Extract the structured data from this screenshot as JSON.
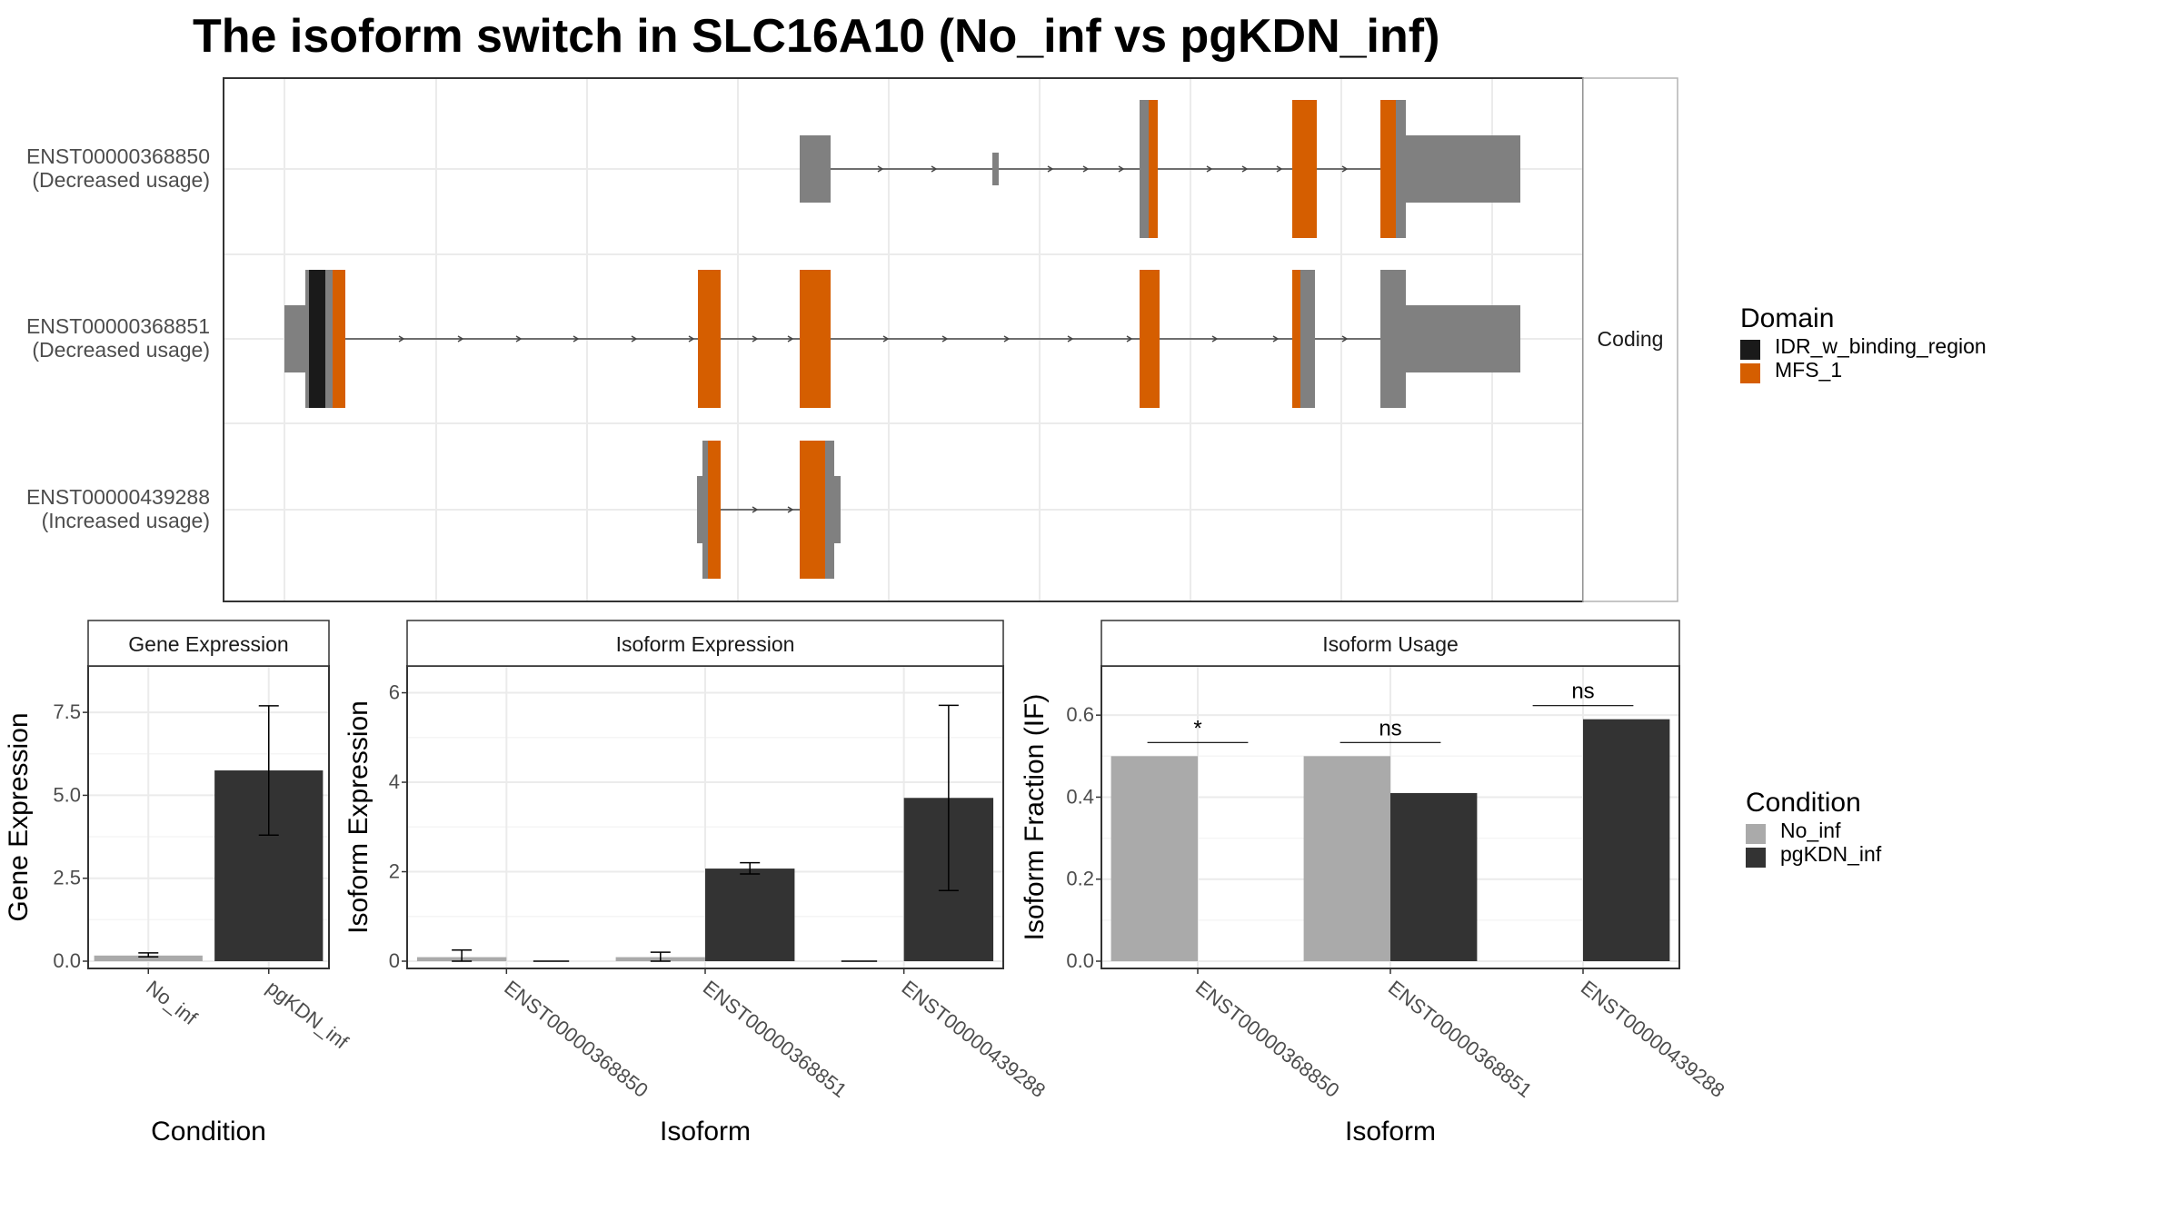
{
  "title": "The isoform switch in SLC16A10 (No_inf vs pgKDN_inf)",
  "colors": {
    "exon_base": "#808080",
    "idr_domain": "#1a1a1a",
    "mfs_domain": "#d55e00",
    "no_inf": "#aaaaaa",
    "pgkdn_inf": "#333333",
    "grid": "#ebebeb",
    "panel_border": "#333333",
    "strip_border": "#b3b3b3"
  },
  "structure": {
    "facet_label": "Coding",
    "isoforms": [
      {
        "id": "ENST00000368850",
        "usage": "(Decreased usage)"
      },
      {
        "id": "ENST00000368851",
        "usage": "(Decreased usage)"
      },
      {
        "id": "ENST00000439288",
        "usage": "(Increased usage)"
      }
    ]
  },
  "domain_legend": {
    "title": "Domain",
    "items": [
      {
        "label": "IDR_w_binding_region",
        "color": "#1a1a1a"
      },
      {
        "label": "MFS_1",
        "color": "#d55e00"
      }
    ]
  },
  "condition_legend": {
    "title": "Condition",
    "items": [
      {
        "label": "No_inf",
        "color": "#aaaaaa"
      },
      {
        "label": "pgKDN_inf",
        "color": "#333333"
      }
    ]
  },
  "chart_data": [
    {
      "type": "bar",
      "title": "Gene Expression",
      "xlabel": "Condition",
      "ylabel": "Gene Expression",
      "ylim": [
        0,
        8.9
      ],
      "yticks": [
        "0.0",
        "2.5",
        "5.0",
        "7.5"
      ],
      "categories": [
        "No_inf",
        "pgKDN_inf"
      ],
      "values": [
        0.17,
        5.75
      ],
      "error_low": [
        0.13,
        3.8
      ],
      "error_high": [
        0.25,
        7.7
      ],
      "grid": true
    },
    {
      "type": "bar",
      "title": "Isoform Expression",
      "xlabel": "Isoform",
      "ylabel": "Isoform Expression",
      "ylim": [
        0,
        6.6
      ],
      "yticks": [
        "0",
        "2",
        "4",
        "6"
      ],
      "categories": [
        "ENST00000368850",
        "ENST00000368851",
        "ENST00000439288"
      ],
      "series": [
        {
          "name": "No_inf",
          "values": [
            0.09,
            0.09,
            0.0
          ],
          "error_low": [
            0.0,
            0.0,
            0.0
          ],
          "error_high": [
            0.25,
            0.2,
            0.0
          ]
        },
        {
          "name": "pgKDN_inf",
          "values": [
            0.0,
            2.07,
            3.65
          ],
          "error_low": [
            0.0,
            1.95,
            1.58
          ],
          "error_high": [
            0.0,
            2.2,
            5.72
          ]
        }
      ],
      "grid": true
    },
    {
      "type": "bar",
      "title": "Isoform Usage",
      "xlabel": "Isoform",
      "ylabel": "Isoform Fraction (IF)",
      "ylim": [
        0,
        0.72
      ],
      "yticks": [
        "0.0",
        "0.2",
        "0.4",
        "0.6"
      ],
      "categories": [
        "ENST00000368850",
        "ENST00000368851",
        "ENST00000439288"
      ],
      "series": [
        {
          "name": "No_inf",
          "values": [
            0.5,
            0.5,
            0.0
          ]
        },
        {
          "name": "pgKDN_inf",
          "values": [
            0.0,
            0.41,
            0.59
          ]
        }
      ],
      "significance": [
        "*",
        "ns",
        "ns"
      ],
      "grid": true
    }
  ]
}
